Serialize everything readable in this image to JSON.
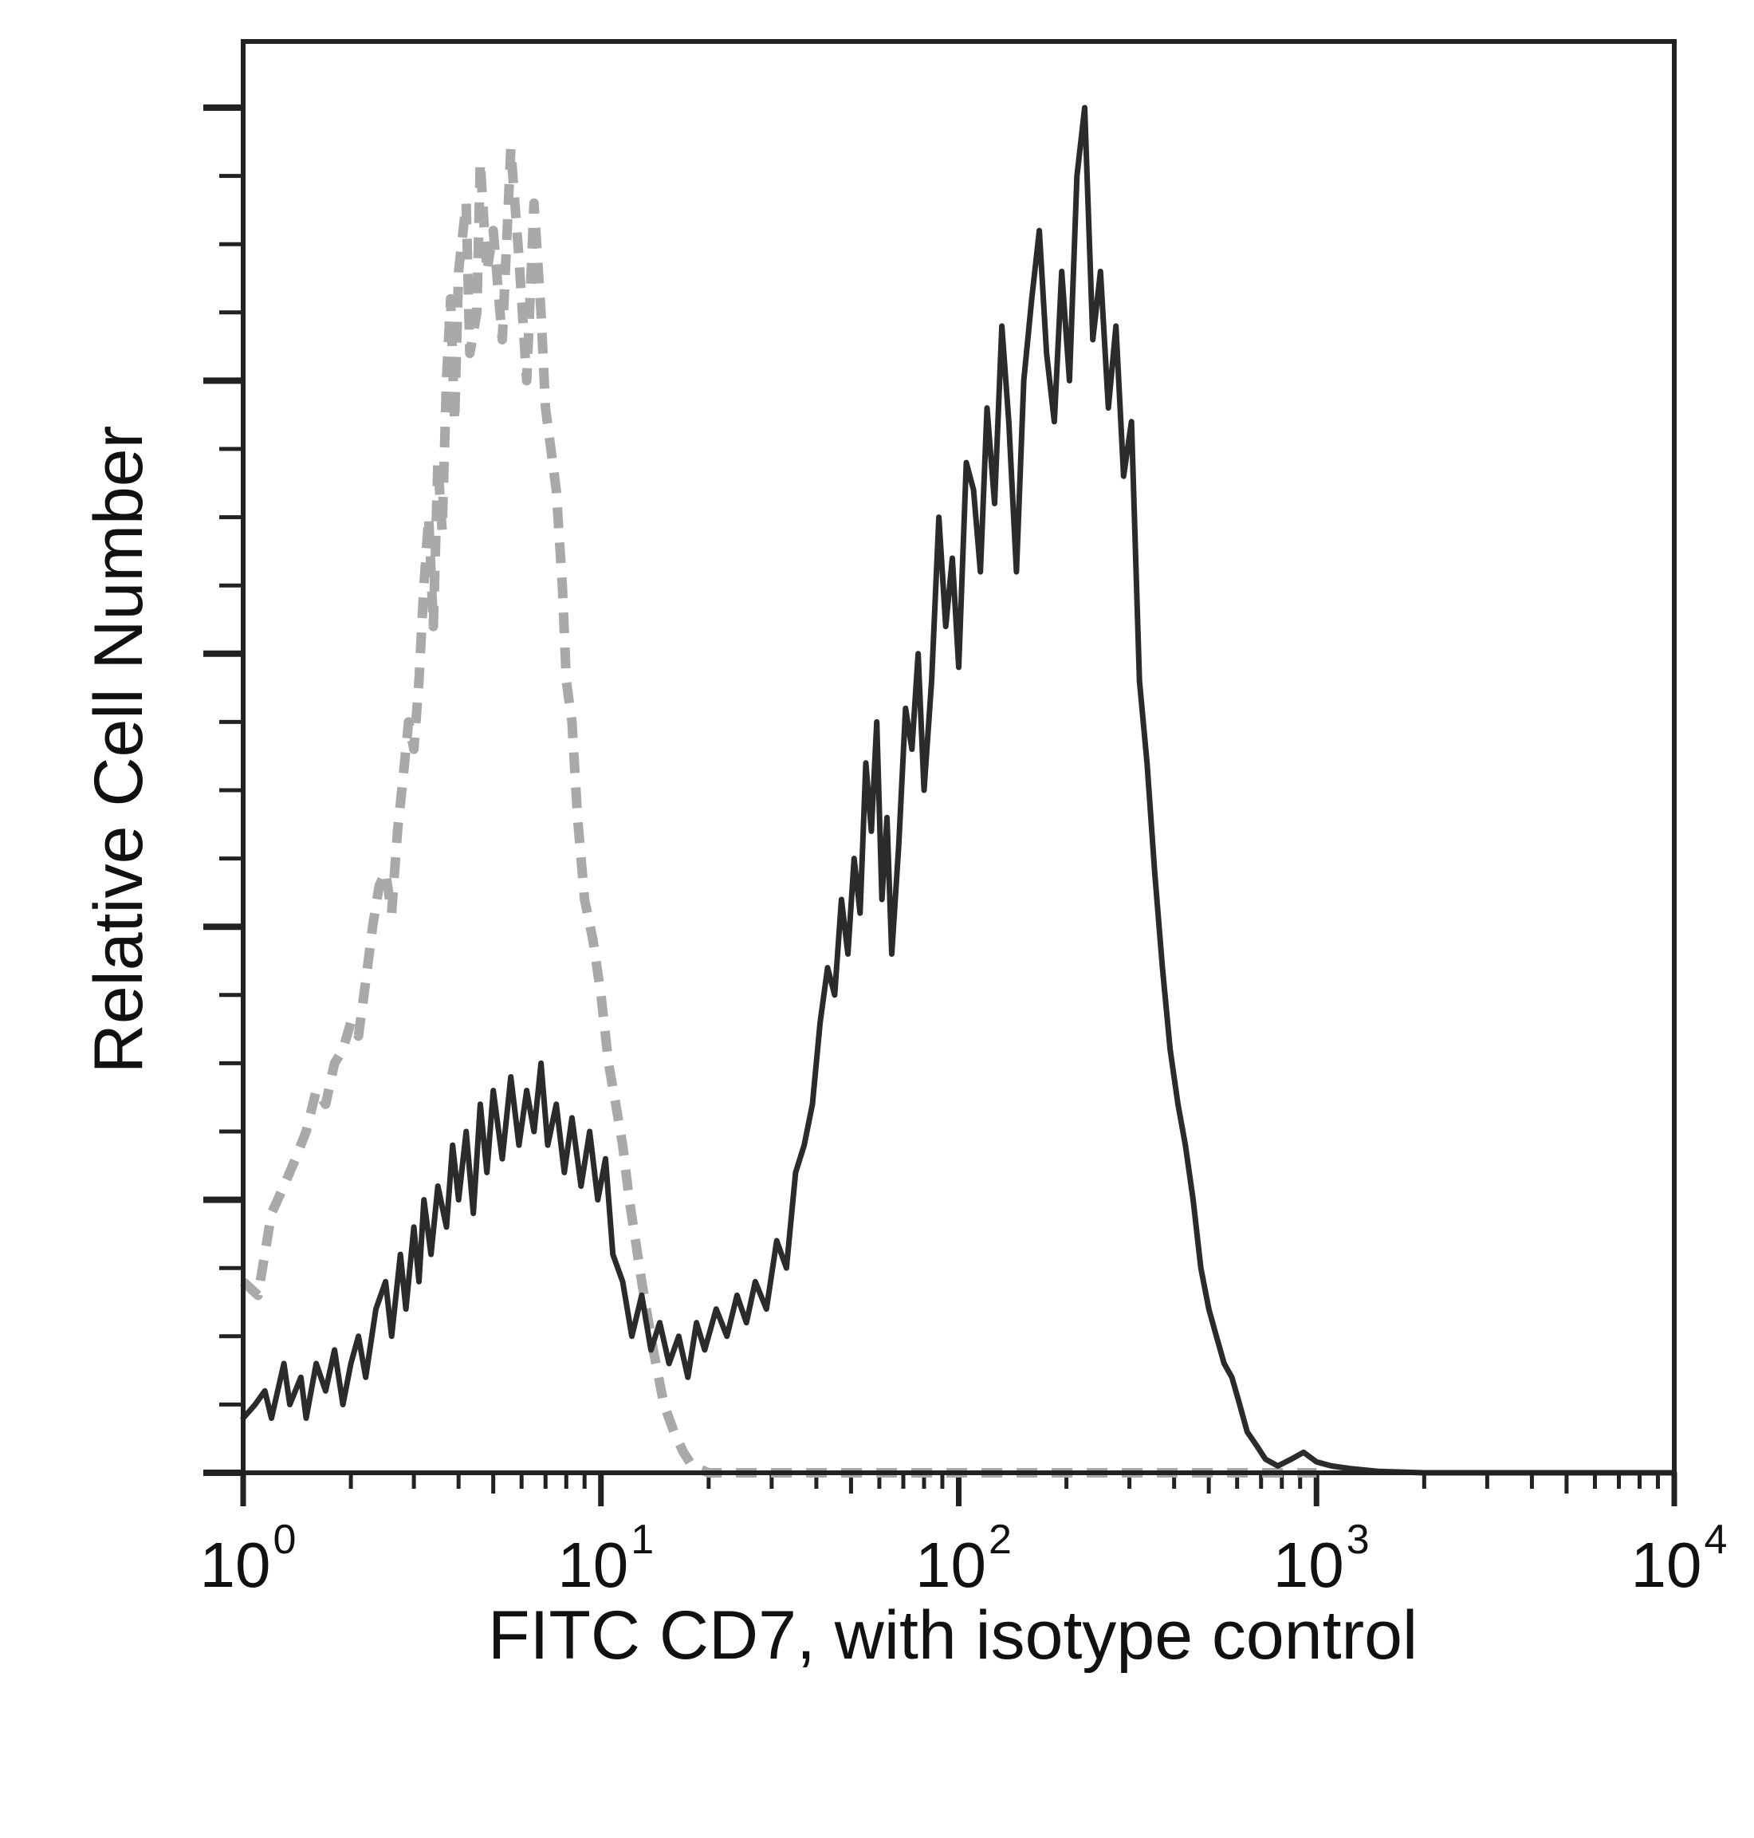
{
  "chart_data": {
    "type": "line",
    "title": "",
    "xlabel": "FITC CD7, with isotype control",
    "ylabel": "Relative Cell Number",
    "x_scale": "log10",
    "xlim": [
      1,
      10000
    ],
    "ylim": [
      0,
      1
    ],
    "x_ticks": [
      {
        "base": "10",
        "exp": "0"
      },
      {
        "base": "10",
        "exp": "1"
      },
      {
        "base": "10",
        "exp": "2"
      },
      {
        "base": "10",
        "exp": "3"
      },
      {
        "base": "10",
        "exp": "4"
      }
    ],
    "y_tick_labels": "none",
    "grid": false,
    "legend": "none",
    "series": [
      {
        "style": "dashed",
        "color": "#a9a9a9",
        "points": [
          [
            1.0,
            0.14
          ],
          [
            1.1,
            0.13
          ],
          [
            1.2,
            0.19
          ],
          [
            1.3,
            0.21
          ],
          [
            1.4,
            0.23
          ],
          [
            1.5,
            0.25
          ],
          [
            1.6,
            0.28
          ],
          [
            1.7,
            0.27
          ],
          [
            1.8,
            0.3
          ],
          [
            1.9,
            0.31
          ],
          [
            2.0,
            0.33
          ],
          [
            2.1,
            0.32
          ],
          [
            2.2,
            0.36
          ],
          [
            2.3,
            0.4
          ],
          [
            2.4,
            0.43
          ],
          [
            2.5,
            0.44
          ],
          [
            2.6,
            0.41
          ],
          [
            2.7,
            0.47
          ],
          [
            2.8,
            0.51
          ],
          [
            2.9,
            0.55
          ],
          [
            3.0,
            0.53
          ],
          [
            3.1,
            0.58
          ],
          [
            3.2,
            0.65
          ],
          [
            3.3,
            0.7
          ],
          [
            3.4,
            0.62
          ],
          [
            3.5,
            0.74
          ],
          [
            3.6,
            0.69
          ],
          [
            3.7,
            0.8
          ],
          [
            3.8,
            0.86
          ],
          [
            3.9,
            0.77
          ],
          [
            4.0,
            0.88
          ],
          [
            4.2,
            0.93
          ],
          [
            4.3,
            0.82
          ],
          [
            4.5,
            0.85
          ],
          [
            4.6,
            0.96
          ],
          [
            4.8,
            0.88
          ],
          [
            5.0,
            0.91
          ],
          [
            5.3,
            0.83
          ],
          [
            5.6,
            0.97
          ],
          [
            5.9,
            0.89
          ],
          [
            6.2,
            0.8
          ],
          [
            6.5,
            0.93
          ],
          [
            6.8,
            0.85
          ],
          [
            7.0,
            0.78
          ],
          [
            7.5,
            0.72
          ],
          [
            7.8,
            0.65
          ],
          [
            8.0,
            0.58
          ],
          [
            8.3,
            0.55
          ],
          [
            8.6,
            0.48
          ],
          [
            9.0,
            0.42
          ],
          [
            9.5,
            0.39
          ],
          [
            10.0,
            0.35
          ],
          [
            10.5,
            0.3
          ],
          [
            11.0,
            0.27
          ],
          [
            11.5,
            0.24
          ],
          [
            12.0,
            0.2
          ],
          [
            13.0,
            0.14
          ],
          [
            14.0,
            0.09
          ],
          [
            15.0,
            0.05
          ],
          [
            16.0,
            0.03
          ],
          [
            17.0,
            0.015
          ],
          [
            18.0,
            0.005
          ],
          [
            20.0,
            0.0
          ],
          [
            1000.0,
            0.0
          ]
        ]
      },
      {
        "style": "solid",
        "color": "#2b2b2b",
        "points": [
          [
            1.0,
            0.04
          ],
          [
            1.08,
            0.05
          ],
          [
            1.15,
            0.06
          ],
          [
            1.2,
            0.04
          ],
          [
            1.3,
            0.08
          ],
          [
            1.35,
            0.05
          ],
          [
            1.45,
            0.07
          ],
          [
            1.5,
            0.04
          ],
          [
            1.6,
            0.08
          ],
          [
            1.7,
            0.06
          ],
          [
            1.8,
            0.09
          ],
          [
            1.9,
            0.05
          ],
          [
            2.0,
            0.08
          ],
          [
            2.1,
            0.1
          ],
          [
            2.2,
            0.07
          ],
          [
            2.35,
            0.12
          ],
          [
            2.5,
            0.14
          ],
          [
            2.6,
            0.1
          ],
          [
            2.75,
            0.16
          ],
          [
            2.85,
            0.12
          ],
          [
            3.0,
            0.18
          ],
          [
            3.1,
            0.14
          ],
          [
            3.2,
            0.2
          ],
          [
            3.35,
            0.16
          ],
          [
            3.5,
            0.21
          ],
          [
            3.7,
            0.18
          ],
          [
            3.85,
            0.24
          ],
          [
            4.0,
            0.2
          ],
          [
            4.2,
            0.25
          ],
          [
            4.4,
            0.19
          ],
          [
            4.6,
            0.27
          ],
          [
            4.8,
            0.22
          ],
          [
            5.0,
            0.28
          ],
          [
            5.3,
            0.23
          ],
          [
            5.6,
            0.29
          ],
          [
            5.9,
            0.24
          ],
          [
            6.2,
            0.28
          ],
          [
            6.5,
            0.25
          ],
          [
            6.8,
            0.3
          ],
          [
            7.1,
            0.24
          ],
          [
            7.5,
            0.27
          ],
          [
            7.9,
            0.22
          ],
          [
            8.3,
            0.26
          ],
          [
            8.8,
            0.21
          ],
          [
            9.3,
            0.25
          ],
          [
            9.8,
            0.2
          ],
          [
            10.3,
            0.23
          ],
          [
            10.8,
            0.16
          ],
          [
            11.5,
            0.14
          ],
          [
            12.2,
            0.1
          ],
          [
            13.0,
            0.13
          ],
          [
            13.8,
            0.09
          ],
          [
            14.6,
            0.11
          ],
          [
            15.5,
            0.08
          ],
          [
            16.5,
            0.1
          ],
          [
            17.5,
            0.07
          ],
          [
            18.5,
            0.11
          ],
          [
            19.5,
            0.09
          ],
          [
            21.0,
            0.12
          ],
          [
            22.5,
            0.1
          ],
          [
            24.0,
            0.13
          ],
          [
            25.5,
            0.11
          ],
          [
            27.0,
            0.14
          ],
          [
            29.0,
            0.12
          ],
          [
            31.0,
            0.17
          ],
          [
            33.0,
            0.15
          ],
          [
            35.0,
            0.22
          ],
          [
            37.0,
            0.24
          ],
          [
            39.0,
            0.27
          ],
          [
            41.0,
            0.33
          ],
          [
            43.0,
            0.37
          ],
          [
            45.0,
            0.35
          ],
          [
            47.0,
            0.42
          ],
          [
            49.0,
            0.38
          ],
          [
            51.0,
            0.45
          ],
          [
            53.0,
            0.41
          ],
          [
            55.0,
            0.52
          ],
          [
            57.0,
            0.47
          ],
          [
            59.0,
            0.55
          ],
          [
            61.0,
            0.42
          ],
          [
            63.0,
            0.48
          ],
          [
            65.0,
            0.38
          ],
          [
            68.0,
            0.46
          ],
          [
            71.0,
            0.56
          ],
          [
            74.0,
            0.53
          ],
          [
            77.0,
            0.6
          ],
          [
            80.0,
            0.5
          ],
          [
            84.0,
            0.58
          ],
          [
            88.0,
            0.7
          ],
          [
            92.0,
            0.62
          ],
          [
            96.0,
            0.67
          ],
          [
            100.0,
            0.59
          ],
          [
            105.0,
            0.74
          ],
          [
            110.0,
            0.72
          ],
          [
            115.0,
            0.66
          ],
          [
            120.0,
            0.78
          ],
          [
            126.0,
            0.71
          ],
          [
            132.0,
            0.84
          ],
          [
            138.0,
            0.77
          ],
          [
            145.0,
            0.66
          ],
          [
            152.0,
            0.8
          ],
          [
            160.0,
            0.86
          ],
          [
            168.0,
            0.91
          ],
          [
            176.0,
            0.82
          ],
          [
            185.0,
            0.77
          ],
          [
            194.0,
            0.88
          ],
          [
            204.0,
            0.8
          ],
          [
            214.0,
            0.95
          ],
          [
            225.0,
            1.0
          ],
          [
            237.0,
            0.83
          ],
          [
            249.0,
            0.88
          ],
          [
            262.0,
            0.78
          ],
          [
            275.0,
            0.84
          ],
          [
            289.0,
            0.73
          ],
          [
            304.0,
            0.77
          ],
          [
            320.0,
            0.58
          ],
          [
            336.0,
            0.52
          ],
          [
            353.0,
            0.44
          ],
          [
            371.0,
            0.37
          ],
          [
            390.0,
            0.31
          ],
          [
            410.0,
            0.27
          ],
          [
            430.0,
            0.24
          ],
          [
            452.0,
            0.2
          ],
          [
            475.0,
            0.15
          ],
          [
            500.0,
            0.12
          ],
          [
            525.0,
            0.1
          ],
          [
            552.0,
            0.08
          ],
          [
            580.0,
            0.07
          ],
          [
            610.0,
            0.05
          ],
          [
            640.0,
            0.03
          ],
          [
            680.0,
            0.02
          ],
          [
            720.0,
            0.01
          ],
          [
            780.0,
            0.005
          ],
          [
            850.0,
            0.01
          ],
          [
            920.0,
            0.015
          ],
          [
            1000.0,
            0.008
          ],
          [
            1100.0,
            0.005
          ],
          [
            1250.0,
            0.003
          ],
          [
            1500.0,
            0.001
          ],
          [
            2000.0,
            0.0
          ],
          [
            10000.0,
            0.0
          ]
        ]
      }
    ]
  }
}
